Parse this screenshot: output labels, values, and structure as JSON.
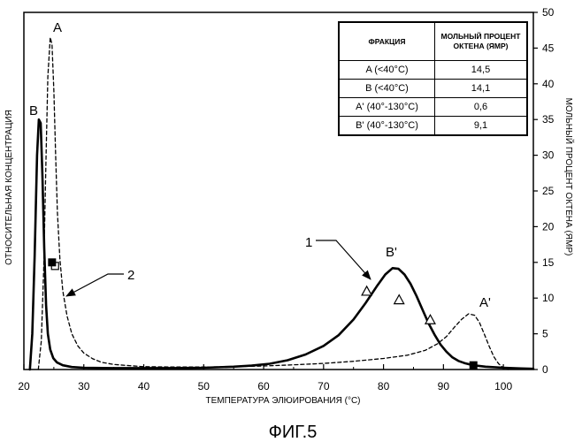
{
  "figure": {
    "caption": "ФИГ.5"
  },
  "chart_data": {
    "type": "line",
    "xlabel": "ТЕМПЕРАТУРА ЭЛЮИРОВАНИЯ (°C)",
    "ylabel_left": "ОТНОСИТЕЛЬНАЯ КОНЦЕНТРАЦИЯ",
    "ylabel_right": "МОЛЬНЫЙ ПРОЦЕНТ ОКТЕНА (ЯМР)",
    "xlim": [
      20,
      105
    ],
    "ylim_right": [
      0,
      50
    ],
    "x_ticks": [
      20,
      30,
      40,
      50,
      60,
      70,
      80,
      90,
      100
    ],
    "y_right_ticks": [
      0,
      5,
      10,
      15,
      20,
      25,
      30,
      35,
      40,
      45,
      50
    ],
    "grid": false,
    "series": [
      {
        "name": "1",
        "style": "solid",
        "color": "#000000",
        "points": [
          [
            21.0,
            0
          ],
          [
            21.4,
            5
          ],
          [
            21.8,
            16
          ],
          [
            22.2,
            30
          ],
          [
            22.5,
            35
          ],
          [
            22.8,
            34.5
          ],
          [
            23.1,
            27
          ],
          [
            23.4,
            17
          ],
          [
            23.7,
            9
          ],
          [
            24.0,
            5
          ],
          [
            24.4,
            2.8
          ],
          [
            24.9,
            1.6
          ],
          [
            25.5,
            1.0
          ],
          [
            26.5,
            0.6
          ],
          [
            28,
            0.35
          ],
          [
            30,
            0.25
          ],
          [
            35,
            0.2
          ],
          [
            40,
            0.2
          ],
          [
            45,
            0.2
          ],
          [
            50,
            0.25
          ],
          [
            55,
            0.4
          ],
          [
            58,
            0.55
          ],
          [
            61,
            0.8
          ],
          [
            64,
            1.3
          ],
          [
            67,
            2.1
          ],
          [
            70,
            3.3
          ],
          [
            72.5,
            4.8
          ],
          [
            75,
            7.0
          ],
          [
            77,
            9.3
          ],
          [
            79,
            11.8
          ],
          [
            80.3,
            13.3
          ],
          [
            81.5,
            14.2
          ],
          [
            82.5,
            14.1
          ],
          [
            83.5,
            13.3
          ],
          [
            84.5,
            12.0
          ],
          [
            85.5,
            10.3
          ],
          [
            86.5,
            8.4
          ],
          [
            87.5,
            6.5
          ],
          [
            88.5,
            4.9
          ],
          [
            89.5,
            3.5
          ],
          [
            90.5,
            2.5
          ],
          [
            91.5,
            1.7
          ],
          [
            92.5,
            1.2
          ],
          [
            93.5,
            0.9
          ],
          [
            95,
            0.6
          ],
          [
            97,
            0.4
          ],
          [
            100,
            0.25
          ],
          [
            103,
            0.15
          ],
          [
            105,
            0.1
          ]
        ]
      },
      {
        "name": "2",
        "style": "dashed",
        "color": "#000000",
        "points": [
          [
            22.4,
            0
          ],
          [
            22.9,
            4
          ],
          [
            23.3,
            14
          ],
          [
            23.7,
            30
          ],
          [
            24.0,
            41
          ],
          [
            24.4,
            46.5
          ],
          [
            24.7,
            45.5
          ],
          [
            25.0,
            39
          ],
          [
            25.3,
            30
          ],
          [
            25.6,
            22
          ],
          [
            26.0,
            15.5
          ],
          [
            26.5,
            11
          ],
          [
            27.2,
            7.5
          ],
          [
            28,
            5
          ],
          [
            29,
            3.3
          ],
          [
            30,
            2.3
          ],
          [
            31.5,
            1.5
          ],
          [
            33,
            1.0
          ],
          [
            35,
            0.7
          ],
          [
            40,
            0.4
          ],
          [
            45,
            0.35
          ],
          [
            50,
            0.35
          ],
          [
            55,
            0.4
          ],
          [
            60,
            0.5
          ],
          [
            65,
            0.65
          ],
          [
            70,
            0.85
          ],
          [
            75,
            1.15
          ],
          [
            80,
            1.55
          ],
          [
            84,
            2.0
          ],
          [
            87,
            2.7
          ],
          [
            89,
            3.6
          ],
          [
            90.5,
            4.6
          ],
          [
            91.8,
            5.9
          ],
          [
            93,
            7.0
          ],
          [
            94.2,
            7.8
          ],
          [
            95.2,
            7.6
          ],
          [
            96,
            6.6
          ],
          [
            96.8,
            5.0
          ],
          [
            97.6,
            3.3
          ],
          [
            98.4,
            1.8
          ],
          [
            99.2,
            0.8
          ],
          [
            100,
            0.25
          ],
          [
            100.8,
            0
          ]
        ]
      }
    ],
    "mol_percent_points": [
      {
        "marker": "open-square",
        "x": 25.2,
        "y": 14.5
      },
      {
        "marker": "filled-square",
        "x": 24.7,
        "y": 15.0
      },
      {
        "marker": "filled-square",
        "x": 95.0,
        "y": 0.6
      },
      {
        "marker": "open-triangle",
        "x": 77.2,
        "y": 10.9
      },
      {
        "marker": "open-triangle",
        "x": 82.6,
        "y": 9.7
      },
      {
        "marker": "open-triangle",
        "x": 87.8,
        "y": 6.9
      }
    ],
    "annotations": [
      {
        "text": "A"
      },
      {
        "text": "B"
      },
      {
        "text": "B'"
      },
      {
        "text": "A'"
      }
    ]
  },
  "table": {
    "headers": [
      "ФРАКЦИЯ",
      "МОЛЬНЫЙ ПРОЦЕНТ ОКТЕНА (ЯМР)"
    ],
    "rows": [
      [
        "A (<40°C)",
        "14,5"
      ],
      [
        "B (<40°C)",
        "14,1"
      ],
      [
        "A' (40°-130°C)",
        "0,6"
      ],
      [
        "B' (40°-130°C)",
        "9,1"
      ]
    ]
  }
}
